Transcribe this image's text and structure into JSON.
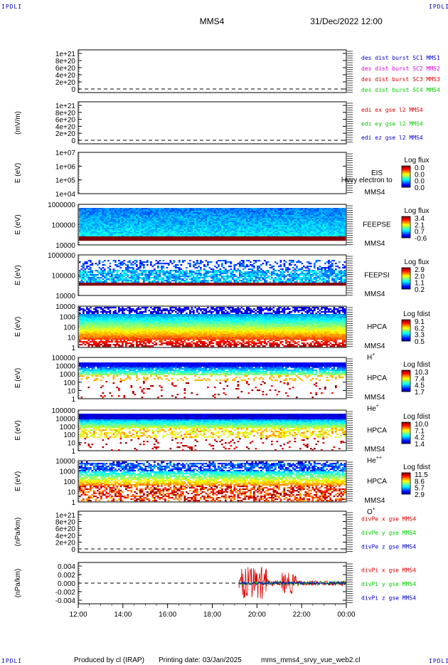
{
  "header": {
    "spacecraft": "MMS4",
    "datetime": "31/Dec/2022 12:00",
    "corner_label": "IPDLI"
  },
  "footer": {
    "produced_by": "Produced by cl (IRAP)",
    "printing_date": "Printing date: 03/Jan/2025",
    "filename": "mms_mms4_srvy_vue_web2.cl"
  },
  "colors": {
    "frame": "#000000",
    "blue": "#0000cc",
    "magenta": "#dd00dd",
    "red": "#dd0000",
    "green": "#00cc00"
  },
  "chart_data": [
    {
      "type": "line",
      "id": "des_dist",
      "ylabel": "",
      "yticks": [
        "1e+21",
        "8e+20",
        "6e+20",
        "4e+20",
        "2e+20",
        "0"
      ],
      "dashed_zero": true,
      "legend": [
        {
          "text": "des dist burst SC1 MMS1",
          "color": "#0000cc"
        },
        {
          "text": "des dist burst SC2 MMS2",
          "color": "#dd00dd"
        },
        {
          "text": "des dist burst SC3 MMS3",
          "color": "#dd0000"
        },
        {
          "text": "des dist burst SC4 MMS4",
          "color": "#00cc00"
        }
      ]
    },
    {
      "type": "line",
      "id": "edi_e",
      "ylabel": "(mV/m)",
      "yticks": [
        "1e+21",
        "8e+20",
        "6e+20",
        "4e+20",
        "2e+20",
        "0"
      ],
      "dashed_zero": true,
      "legend": [
        {
          "text": "edi ex gse l2 MMS4",
          "color": "#dd0000"
        },
        {
          "text": "edi ey gse l2 MMS4",
          "color": "#00cc00"
        },
        {
          "text": "edi ez gse l2 MMS4",
          "color": "#0000cc"
        }
      ]
    },
    {
      "type": "heatmap",
      "id": "eis",
      "ylabel": "E (eV)",
      "yticks": [
        "1e+07",
        "1e+06",
        "1e+05",
        "1e+04"
      ],
      "scale": "log",
      "right_labels": [
        "EIS",
        "MMS4"
      ],
      "overlay_text": "l ivvy electron to",
      "colorbar": {
        "title": "Log flux",
        "ticks": [
          "0.0",
          "0.0",
          "0.0",
          "0.0"
        ]
      },
      "empty": true
    },
    {
      "type": "heatmap",
      "id": "feeps_e",
      "ylabel": "E (eV)",
      "yticks": [
        "1000000",
        "100000",
        "10000"
      ],
      "scale": "log",
      "right_labels": [
        "FEEPSE",
        "MMS4"
      ],
      "colorbar": {
        "title": "Log flux",
        "ticks": [
          "3.4",
          "2.1",
          "0.7",
          "-0.6"
        ]
      },
      "profile": "feepse"
    },
    {
      "type": "heatmap",
      "id": "feeps_i",
      "ylabel": "E (eV)",
      "yticks": [
        "1000000",
        "100000",
        "10000"
      ],
      "scale": "log",
      "right_labels": [
        "FEEPSI",
        "MMS4"
      ],
      "colorbar": {
        "title": "Log flux",
        "ticks": [
          "2.9",
          "2.0",
          "1.1",
          "0.2"
        ]
      },
      "profile": "feepsi"
    },
    {
      "type": "heatmap",
      "id": "hpca_h",
      "ylabel": "E (eV)",
      "yticks": [
        "10000",
        "1000",
        "100",
        "10",
        "1"
      ],
      "scale": "log",
      "right_labels": [
        "HPCA",
        "MMS4"
      ],
      "ion": {
        "base": "H",
        "sup": "+"
      },
      "colorbar": {
        "title": "Log fdist",
        "ticks": [
          "9.1",
          "6.2",
          "3.3",
          "0.5"
        ]
      },
      "profile": "hpca_h"
    },
    {
      "type": "heatmap",
      "id": "hpca_he",
      "ylabel": "E (eV)",
      "yticks": [
        "100000",
        "10000",
        "1000",
        "100",
        "10",
        "1"
      ],
      "scale": "log",
      "right_labels": [
        "HPCA",
        "MMS4"
      ],
      "ion": {
        "base": "He",
        "sup": "+"
      },
      "colorbar": {
        "title": "Log fdist",
        "ticks": [
          "10.3",
          "7.4",
          "4.5",
          "1.7"
        ]
      },
      "profile": "hpca_he"
    },
    {
      "type": "heatmap",
      "id": "hpca_he2",
      "ylabel": "E (eV)",
      "yticks": [
        "100000",
        "10000",
        "1000",
        "100",
        "10",
        "1"
      ],
      "scale": "log",
      "right_labels": [
        "HPCA",
        "MMS4"
      ],
      "ion": {
        "base": "He",
        "sup": "++"
      },
      "colorbar": {
        "title": "Log fdist",
        "ticks": [
          "10.0",
          "7.1",
          "4.2",
          "1.4"
        ]
      },
      "profile": "hpca_he2"
    },
    {
      "type": "heatmap",
      "id": "hpca_o",
      "ylabel": "E (eV)",
      "yticks": [
        "10000",
        "1000",
        "100",
        "10",
        "1"
      ],
      "scale": "log",
      "right_labels": [
        "HPCA",
        "MMS4"
      ],
      "ion": {
        "base": "O",
        "sup": "+"
      },
      "colorbar": {
        "title": "Log fdist",
        "ticks": [
          "11.5",
          "8.6",
          "5.7",
          "2.9"
        ]
      },
      "profile": "hpca_o"
    },
    {
      "type": "line",
      "id": "divpe",
      "ylabel": "(nPa/km)",
      "yticks": [
        "1e+21",
        "8e+20",
        "6e+20",
        "4e+20",
        "2e+20",
        "0"
      ],
      "dashed_zero": true,
      "legend": [
        {
          "text": "divPe x gse MMS4",
          "color": "#dd0000"
        },
        {
          "text": "divPe y gse MMS4",
          "color": "#00cc00"
        },
        {
          "text": "divPe z gse MMS4",
          "color": "#0000cc"
        }
      ]
    },
    {
      "type": "line",
      "id": "divpi",
      "ylabel": "(nPa/km)",
      "yticks": [
        "0.004",
        "0.002",
        "0.000",
        "-0.002",
        "-0.004"
      ],
      "ylim": [
        -0.005,
        0.005
      ],
      "dashed_zero": true,
      "data_start_hour": 19.2,
      "legend": [
        {
          "text": "divPi x gse MMS4",
          "color": "#dd0000"
        },
        {
          "text": "divPi y gse MMS4",
          "color": "#00cc00"
        },
        {
          "text": "divPi z gse MMS4",
          "color": "#0000cc"
        }
      ]
    }
  ],
  "xaxis": {
    "ticks": [
      "12:00",
      "14:00",
      "16:00",
      "18:00",
      "20:00",
      "22:00",
      "00:00"
    ],
    "range_hours": [
      12,
      24
    ]
  }
}
